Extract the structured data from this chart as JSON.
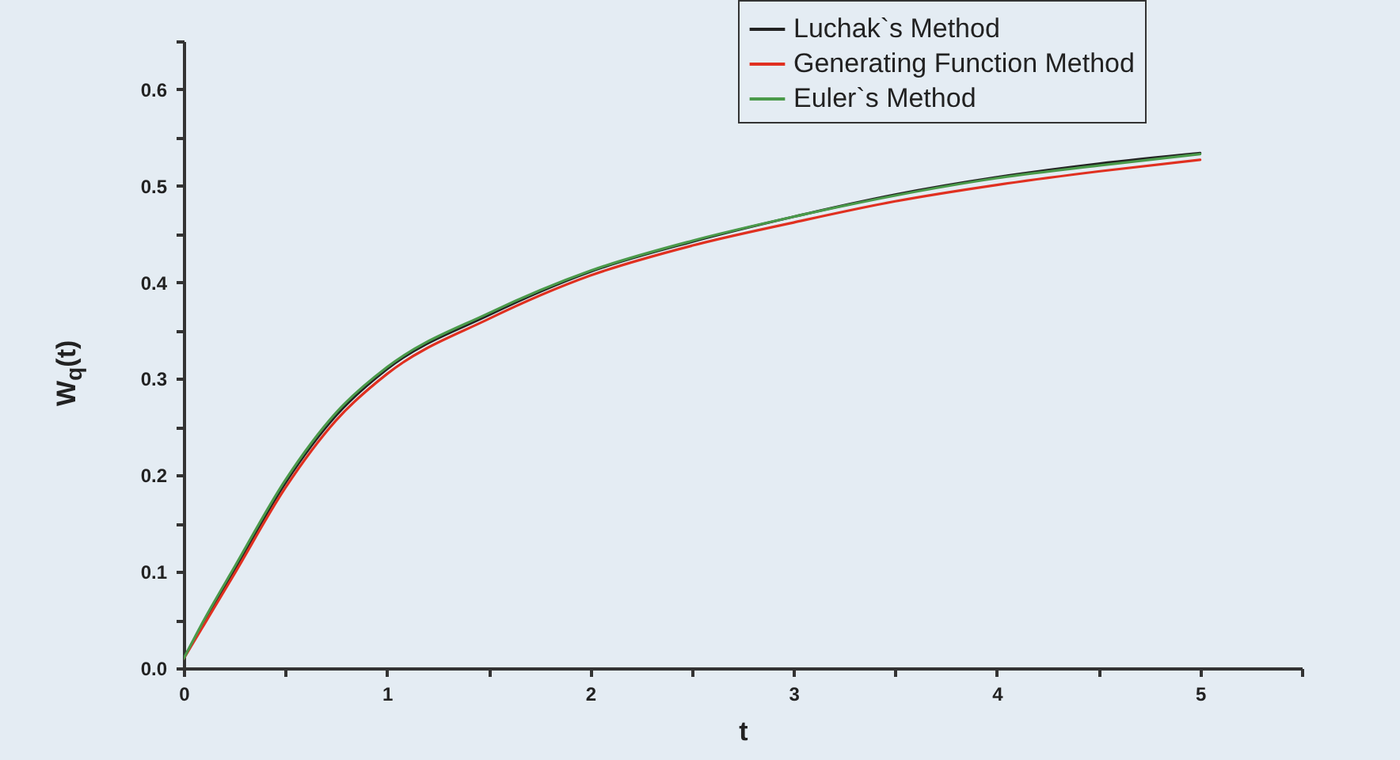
{
  "chart_data": {
    "type": "line",
    "xlabel": "t",
    "ylabel": "W$_{q}$(t)",
    "x": [
      0,
      0.1,
      0.25,
      0.5,
      0.75,
      1,
      1.5,
      2,
      2.5,
      3,
      3.5,
      4,
      4.5,
      5
    ],
    "series": [
      {
        "name": "Luchak`s Method",
        "color": "#222222",
        "values": [
          0.01,
          0.048,
          0.102,
          0.192,
          0.262,
          0.31,
          0.366,
          0.411,
          0.442,
          0.468,
          0.491,
          0.509,
          0.523,
          0.534
        ]
      },
      {
        "name": "Generating Function Method",
        "color": "#e03020",
        "values": [
          0.01,
          0.045,
          0.098,
          0.187,
          0.257,
          0.305,
          0.362,
          0.407,
          0.438,
          0.462,
          0.484,
          0.501,
          0.515,
          0.527
        ]
      },
      {
        "name": "Euler`s Method",
        "color": "#4a9a4a",
        "values": [
          0.01,
          0.05,
          0.105,
          0.195,
          0.265,
          0.312,
          0.368,
          0.412,
          0.443,
          0.468,
          0.49,
          0.508,
          0.521,
          0.533
        ]
      }
    ],
    "xlim": [
      0,
      5.5
    ],
    "xticks": [
      0,
      {
        "value": 0.5,
        "label": null
      },
      1,
      {
        "value": 1.5,
        "label": null
      },
      2,
      {
        "value": 2.5,
        "label": null
      },
      3,
      {
        "value": 3.5,
        "label": null
      },
      4,
      {
        "value": 4.5,
        "label": null
      },
      5,
      {
        "value": 5.5,
        "label": null
      }
    ],
    "ylim": [
      0,
      0.65
    ],
    "yticks": [
      "0.0",
      {
        "value": 0.05,
        "label": null
      },
      0.1,
      {
        "value": 0.15,
        "label": null
      },
      0.2,
      {
        "value": 0.25,
        "label": null
      },
      0.3,
      {
        "value": 0.35,
        "label": null
      },
      0.4,
      {
        "value": 0.45,
        "label": null
      },
      0.5,
      {
        "value": 0.55,
        "label": null
      },
      0.6,
      {
        "value": 0.65,
        "label": null
      }
    ],
    "legend": "top right",
    "grid": false,
    "marker": "none",
    "line_style": "solid"
  }
}
